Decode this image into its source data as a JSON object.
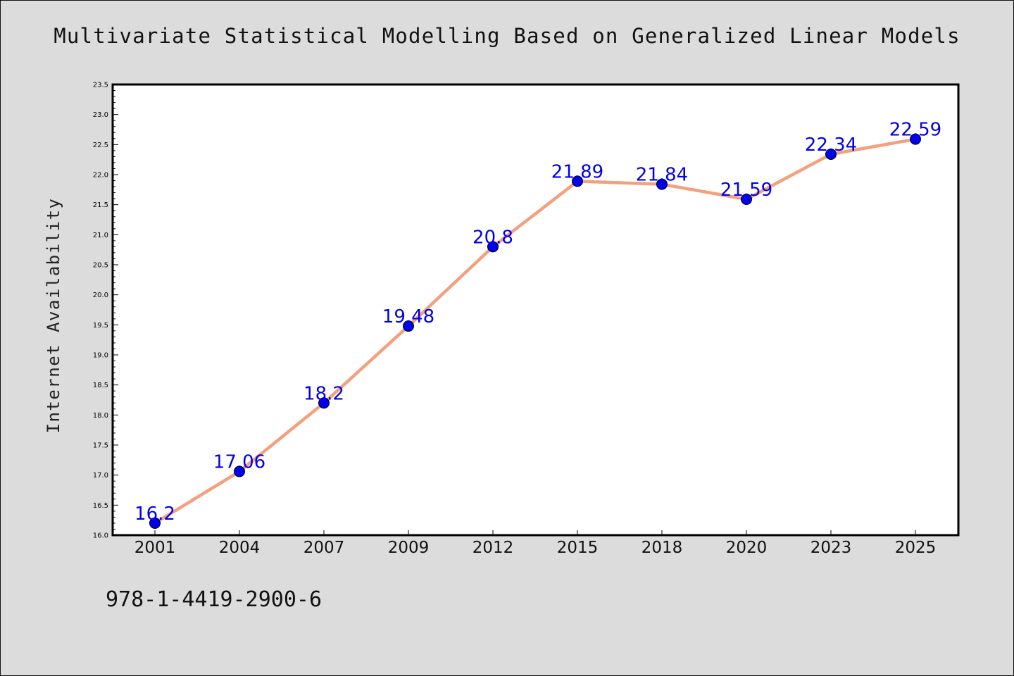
{
  "title": "Multivariate Statistical Modelling Based on Generalized Linear Models",
  "isbn": "978-1-4419-2900-6",
  "colors": {
    "background": "#dcdcdc",
    "plot_background": "#ffffff",
    "line": "#f4a07e",
    "marker": "#0000ee",
    "data_label": "#0000ee"
  },
  "chart_data": {
    "type": "line",
    "ylabel": "Internet Availability",
    "xlabel": "",
    "categories": [
      "2001",
      "2004",
      "2007",
      "2009",
      "2012",
      "2015",
      "2018",
      "2020",
      "2023",
      "2025"
    ],
    "series": [
      {
        "values": [
          16.2,
          17.06,
          18.2,
          19.48,
          20.8,
          21.89,
          21.84,
          21.59,
          22.34,
          22.59
        ],
        "labels": [
          "16.2",
          "17.06",
          "18.2",
          "19.48",
          "20.8",
          "21.89",
          "21.84",
          "21.59",
          "22.34",
          "22.59"
        ]
      }
    ],
    "ylim": [
      16.0,
      23.5
    ],
    "yticks": [
      "16.0",
      "16.5",
      "17.0",
      "17.5",
      "18.0",
      "18.5",
      "19.0",
      "19.5",
      "20.0",
      "20.5",
      "21.0",
      "21.5",
      "22.0",
      "22.5",
      "23.0",
      "23.5"
    ],
    "grid": false,
    "legend": "none"
  }
}
